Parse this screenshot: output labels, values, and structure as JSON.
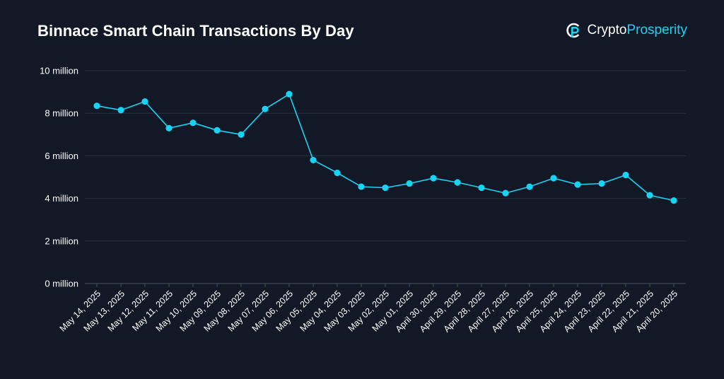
{
  "header": {
    "title": "Binnace Smart Chain Transactions By Day",
    "brand_part1": "Crypto",
    "brand_part2": "Prosperity",
    "brand_icon": "cryptoprosperity-logo-icon"
  },
  "colors": {
    "background": "#121826",
    "line": "#19d3f5",
    "grid": "#2a3140",
    "text": "#ffffff"
  },
  "chart_data": {
    "type": "line",
    "title": "Binnace Smart Chain Transactions By Day",
    "xlabel": "",
    "ylabel": "",
    "ylim": [
      0,
      10
    ],
    "yticks": [
      0,
      2,
      4,
      6,
      8,
      10
    ],
    "ytick_labels": [
      "0 million",
      "2 million",
      "4 million",
      "6 million",
      "8 million",
      "10 million"
    ],
    "grid": true,
    "legend": "none",
    "categories": [
      "May 14, 2025",
      "May 13, 2025",
      "May 12, 2025",
      "May 11, 2025",
      "May 10, 2025",
      "May 09, 2025",
      "May 08, 2025",
      "May 07, 2025",
      "May 06, 2025",
      "May 05, 2025",
      "May 04, 2025",
      "May 03, 2025",
      "May 02, 2025",
      "May 01, 2025",
      "April 30, 2025",
      "April 29, 2025",
      "April 28, 2025",
      "April 27, 2025",
      "April 26, 2025",
      "April 25, 2025",
      "April 24, 2025",
      "April 23, 2025",
      "April 22, 2025",
      "April 21, 2025",
      "April 20, 2025"
    ],
    "series": [
      {
        "values": [
          8.35,
          8.15,
          8.55,
          7.3,
          7.55,
          7.2,
          7.0,
          8.2,
          8.9,
          5.8,
          5.2,
          4.55,
          4.5,
          4.7,
          4.95,
          4.75,
          4.5,
          4.25,
          4.55,
          4.95,
          4.65,
          4.7,
          5.1,
          4.15,
          3.9
        ],
        "color": "#19d3f5"
      }
    ]
  }
}
